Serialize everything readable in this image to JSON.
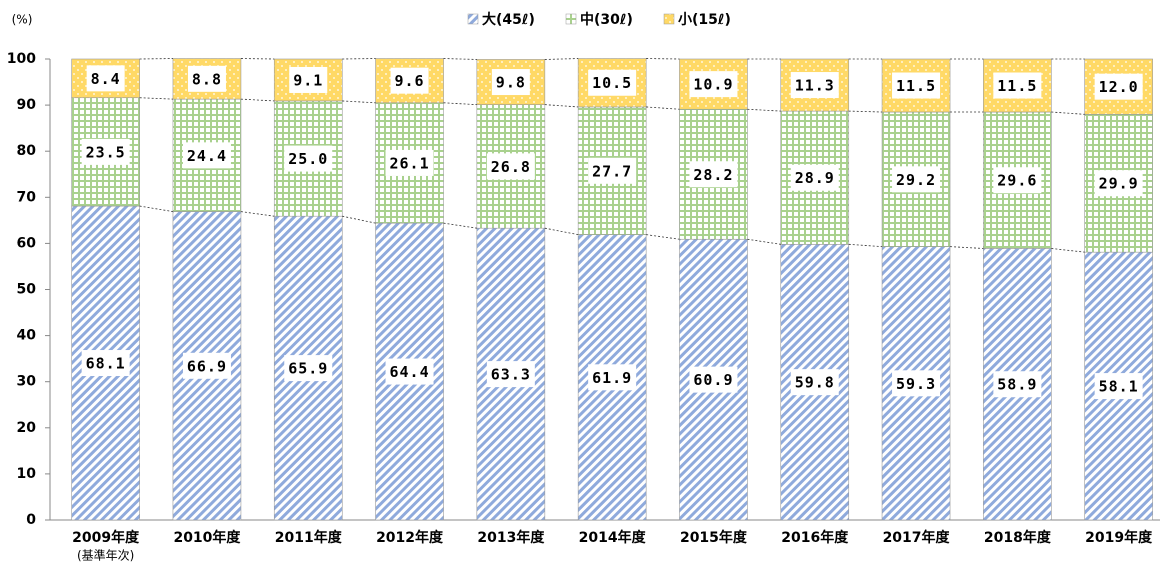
{
  "chart_data": {
    "type": "stacked_bar",
    "y_label": "(%)",
    "categories": [
      "2009年度",
      "2010年度",
      "2011年度",
      "2012年度",
      "2013年度",
      "2014年度",
      "2015年度",
      "2016年度",
      "2017年度",
      "2018年度",
      "2019年度"
    ],
    "category_note": "(基準年次)",
    "series": [
      {
        "name": "大(45ℓ)",
        "color": "#8faadc",
        "pattern": "diagonal",
        "values": [
          68.1,
          66.9,
          65.9,
          64.4,
          63.3,
          61.9,
          60.9,
          59.8,
          59.3,
          58.9,
          58.1
        ],
        "value_labels": [
          "68.1",
          "66.9",
          "65.9",
          "64.4",
          "63.3",
          "61.9",
          "60.9",
          "59.8",
          "59.3",
          "58.9",
          "58.1"
        ]
      },
      {
        "name": "中(30ℓ)",
        "color": "#a9d18e",
        "pattern": "grid",
        "values": [
          23.5,
          24.4,
          25.0,
          26.1,
          26.8,
          27.7,
          28.2,
          28.9,
          29.2,
          29.6,
          29.9
        ],
        "value_labels": [
          "23.5",
          "24.4",
          "25.0",
          "26.1",
          "26.8",
          "27.7",
          "28.2",
          "28.9",
          "29.2",
          "29.6",
          "29.9"
        ]
      },
      {
        "name": "小(15ℓ)",
        "color": "#ffd966",
        "pattern": "dots",
        "values": [
          8.4,
          8.8,
          9.1,
          9.6,
          9.8,
          10.5,
          10.9,
          11.3,
          11.5,
          11.5,
          12.0
        ],
        "value_labels": [
          "8.4",
          "8.8",
          "9.1",
          "9.6",
          "9.8",
          "10.5",
          "10.9",
          "11.3",
          "11.5",
          "11.5",
          "12.0"
        ]
      }
    ],
    "ylim": [
      0,
      100
    ],
    "yticks": [
      0,
      10,
      20,
      30,
      40,
      50,
      60,
      70,
      80,
      90,
      100
    ],
    "grid": false,
    "legend": "top"
  }
}
